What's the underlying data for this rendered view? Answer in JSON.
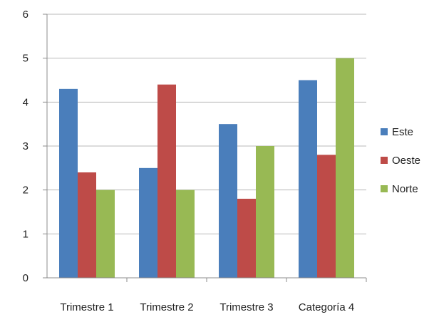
{
  "chart_data": {
    "type": "bar",
    "title": "",
    "xlabel": "",
    "ylabel": "",
    "categories": [
      "Trimestre 1",
      "Trimestre 2",
      "Trimestre 3",
      "Categoría 4"
    ],
    "series": [
      {
        "name": "Este",
        "color": "#4a7ebb",
        "values": [
          4.3,
          2.5,
          3.5,
          4.5
        ]
      },
      {
        "name": "Oeste",
        "color": "#be4b48",
        "values": [
          2.4,
          4.4,
          1.8,
          2.8
        ]
      },
      {
        "name": "Norte",
        "color": "#98b954",
        "values": [
          2.0,
          2.0,
          3.0,
          5.0
        ]
      }
    ],
    "ylim": [
      0,
      6
    ],
    "yticks": [
      "0",
      "1",
      "2",
      "3",
      "4",
      "5",
      "6"
    ],
    "grid": true,
    "legend_position": "right"
  }
}
